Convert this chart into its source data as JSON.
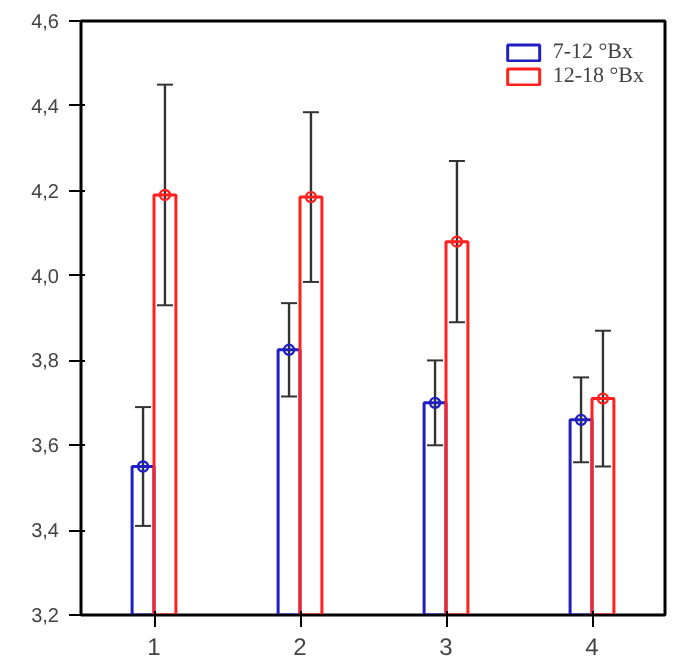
{
  "chart_data": {
    "type": "bar",
    "categories": [
      "1",
      "2",
      "3",
      "4"
    ],
    "series": [
      {
        "name": "7-12 °Bx",
        "color": "#2020c0",
        "values": [
          3.55,
          3.825,
          3.7,
          3.66
        ],
        "errors": [
          0.14,
          0.11,
          0.1,
          0.1
        ]
      },
      {
        "name": "12-18 °Bx",
        "color": "#ff2020",
        "values": [
          4.19,
          4.185,
          4.08,
          3.71
        ],
        "errors": [
          0.26,
          0.2,
          0.19,
          0.16
        ]
      },
      {
        "type": "scatter",
        "marker": "circle",
        "x": [
          "1",
          "2",
          "3",
          "4"
        ],
        "color": "#2020c0",
        "values": [
          3.55,
          3.825,
          3.7,
          3.66
        ]
      },
      {
        "type": "scatter",
        "marker": "circle",
        "x": [
          "1",
          "2",
          "3",
          "4"
        ],
        "color": "#ff2020",
        "values": [
          4.19,
          4.185,
          4.08,
          3.71
        ]
      }
    ],
    "ylim": [
      3.2,
      4.6
    ],
    "yticks": [
      {
        "value": 3.2,
        "label": "3,2"
      },
      {
        "value": 3.4,
        "label": "3,4"
      },
      {
        "value": 3.6,
        "label": "3,6"
      },
      {
        "value": 3.8,
        "label": "3,8"
      },
      {
        "value": 4.0,
        "label": "4,0"
      },
      {
        "value": 4.2,
        "label": "4,2"
      },
      {
        "value": 4.4,
        "label": "4,4"
      },
      {
        "value": 4.6,
        "label": "4,6"
      }
    ],
    "grid": false,
    "legend": "top right"
  }
}
